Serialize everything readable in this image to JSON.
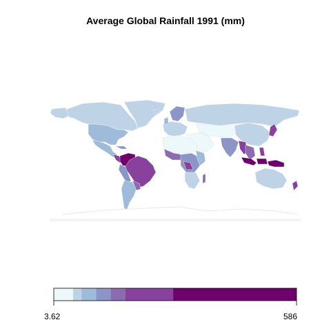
{
  "title": "Average Global Rainfall 1991 (mm)",
  "legend": {
    "min_label": "3.62",
    "max_label": "586",
    "min_value": 3.62,
    "max_value": 586,
    "palette": [
      "#edf8fb",
      "#bfd3e6",
      "#9ebcda",
      "#8c96c6",
      "#8c6bb1",
      "#88419d",
      "#6e016b"
    ],
    "bins": [
      3.62,
      50,
      70,
      105,
      140,
      175,
      290,
      586
    ]
  },
  "colors": {
    "country_border": "#ffffff",
    "graticule_outline": "#d9d9d9",
    "legend_border": "#000000"
  }
}
